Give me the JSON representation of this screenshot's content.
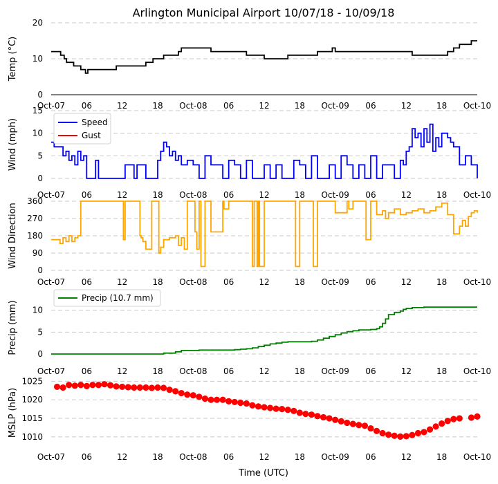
{
  "title": "Arlington Municipal Airport 10/07/18 - 10/09/18",
  "xlabel": "Time (UTC)",
  "x_tick_labels": [
    "Oct-07",
    "06",
    "12",
    "18",
    "Oct-08",
    "06",
    "12",
    "18",
    "Oct-09",
    "06",
    "12",
    "18",
    "Oct-10"
  ],
  "chart_data": [
    {
      "type": "line",
      "id": "temp",
      "ylabel": "Temp (°C)",
      "ylim": [
        0,
        20
      ],
      "yticks": [
        0,
        10,
        20
      ],
      "xlim_hours": [
        0,
        72
      ],
      "color": "#000000",
      "series": [
        {
          "name": "Temp",
          "x": [
            0,
            1.2,
            1.6,
            2.2,
            2.6,
            3.0,
            3.8,
            4.5,
            5.0,
            5.8,
            6.2,
            10.5,
            11.0,
            15.5,
            16.0,
            17.2,
            18.0,
            19.0,
            19.5,
            21.5,
            22.0,
            26.0,
            27.0,
            33.0,
            35.0,
            36.0,
            39.0,
            40.0,
            45.0,
            46.0,
            47.5,
            48.0,
            60.0,
            61.0,
            64.0,
            65.0,
            67.0,
            68.0,
            69.0,
            70.0,
            71.0,
            72.0
          ],
          "values": [
            12,
            12,
            11,
            10,
            9,
            9,
            8,
            8,
            7,
            6,
            7,
            7,
            8,
            8,
            9,
            10,
            10,
            11,
            11,
            12,
            13,
            13,
            12,
            11,
            11,
            10,
            10,
            11,
            12,
            12,
            13,
            12,
            12,
            11,
            11,
            11,
            12,
            13,
            14,
            14,
            15,
            15
          ]
        }
      ]
    },
    {
      "type": "line",
      "id": "wind",
      "ylabel": "Wind (mph)",
      "ylim": [
        0,
        15
      ],
      "yticks": [
        0,
        5,
        10,
        15
      ],
      "xlim_hours": [
        0,
        72
      ],
      "legend": [
        "Speed",
        "Gust"
      ],
      "legend_colors": [
        "#0000ff",
        "#ff0000"
      ],
      "series": [
        {
          "name": "Speed",
          "color": "#0000ff",
          "x": [
            0,
            0.5,
            1.0,
            2.0,
            2.5,
            3.0,
            3.5,
            4.0,
            4.5,
            5.0,
            5.5,
            6.0,
            7.5,
            8.0,
            12.0,
            12.5,
            14.0,
            14.5,
            16.0,
            17.0,
            18.0,
            18.5,
            19.0,
            19.5,
            20.0,
            20.5,
            21.0,
            21.5,
            22.0,
            23.0,
            24.0,
            25.0,
            26.0,
            27.0,
            28.0,
            29.0,
            30.0,
            31.0,
            32.0,
            33.0,
            34.0,
            35.0,
            36.0,
            37.0,
            38.0,
            39.0,
            40.0,
            41.0,
            42.0,
            43.0,
            44.0,
            45.0,
            46.0,
            47.0,
            48.0,
            49.0,
            50.0,
            51.0,
            52.0,
            53.0,
            54.0,
            55.0,
            56.0,
            57.0,
            58.0,
            59.0,
            59.5,
            60.0,
            60.5,
            61.0,
            61.5,
            62.0,
            62.5,
            63.0,
            63.5,
            64.0,
            64.5,
            65.0,
            65.5,
            66.0,
            67.0,
            67.5,
            68.0,
            69.0,
            70.0,
            71.0,
            72.0
          ],
          "values": [
            8,
            7,
            7,
            5,
            6,
            4,
            5,
            3,
            6,
            4,
            5,
            0,
            4,
            0,
            0,
            3,
            0,
            3,
            0,
            0,
            4,
            6,
            8,
            7,
            5,
            6,
            4,
            5,
            3,
            4,
            3,
            0,
            5,
            3,
            3,
            0,
            4,
            3,
            0,
            4,
            0,
            0,
            3,
            0,
            3,
            0,
            0,
            4,
            3,
            0,
            5,
            0,
            0,
            3,
            0,
            5,
            3,
            0,
            3,
            0,
            5,
            0,
            3,
            3,
            0,
            4,
            3,
            6,
            7,
            11,
            9,
            10,
            7,
            11,
            8,
            12,
            6,
            9,
            7,
            10,
            9,
            8,
            7,
            3,
            5,
            3,
            0
          ]
        },
        {
          "name": "Gust",
          "color": "#ff0000",
          "x": [],
          "values": []
        }
      ]
    },
    {
      "type": "line",
      "id": "dir",
      "ylabel": "Wind Direction",
      "ylim": [
        0,
        360
      ],
      "yticks": [
        0,
        90,
        180,
        270,
        360
      ],
      "xlim_hours": [
        0,
        72
      ],
      "color": "#ffa500",
      "series": [
        {
          "name": "Direction",
          "x": [
            0,
            1,
            1.5,
            2,
            2.5,
            3,
            3.5,
            4.0,
            4.5,
            5.0,
            6.5,
            7.0,
            12.0,
            12.2,
            12.5,
            14.5,
            15.0,
            15.2,
            15.5,
            16.0,
            17.0,
            18.0,
            18.2,
            18.5,
            19.0,
            20.0,
            21.0,
            21.5,
            22.0,
            22.5,
            23.0,
            24.0,
            24.3,
            24.6,
            25.0,
            25.3,
            26.0,
            26.5,
            27.0,
            29.0,
            29.2,
            30.0,
            32.0,
            33.0,
            34.0,
            34.3,
            34.8,
            35.0,
            35.2,
            36.0,
            38.0,
            41.0,
            41.3,
            42.0,
            43.0,
            44.0,
            44.3,
            45.0,
            46.0,
            48.0,
            50.0,
            50.3,
            51.0,
            52.0,
            53.0,
            53.2,
            54.0,
            54.5,
            55.0,
            56.0,
            56.5,
            57.0,
            58.0,
            59.0,
            60.0,
            61.0,
            62.0,
            63.0,
            64.0,
            65.0,
            66.0,
            67.0,
            68.0,
            69.0,
            69.5,
            70.0,
            70.5,
            71.0,
            71.5,
            72.0
          ],
          "values": [
            160,
            160,
            140,
            170,
            150,
            180,
            150,
            170,
            180,
            360,
            360,
            360,
            360,
            160,
            360,
            360,
            180,
            170,
            150,
            110,
            360,
            360,
            90,
            120,
            160,
            170,
            180,
            130,
            170,
            110,
            360,
            360,
            200,
            110,
            360,
            20,
            360,
            360,
            200,
            360,
            320,
            360,
            360,
            360,
            20,
            360,
            20,
            360,
            20,
            360,
            360,
            360,
            20,
            360,
            360,
            360,
            20,
            360,
            360,
            300,
            360,
            320,
            360,
            360,
            360,
            160,
            360,
            360,
            290,
            310,
            270,
            300,
            320,
            290,
            300,
            310,
            320,
            300,
            310,
            330,
            350,
            290,
            190,
            230,
            260,
            230,
            280,
            300,
            310,
            300
          ]
        }
      ]
    },
    {
      "type": "line",
      "id": "precip",
      "ylabel": "Precip (mm)",
      "ylim": [
        0,
        12
      ],
      "yticks": [
        0,
        5,
        10
      ],
      "xlim_hours": [
        0,
        72
      ],
      "color": "#008000",
      "legend": [
        "Precip (10.7 mm)"
      ],
      "series": [
        {
          "name": "Precip (10.7 mm)",
          "x": [
            0,
            18.0,
            19.0,
            21.0,
            22.0,
            24.0,
            25.0,
            30.0,
            31.0,
            32.0,
            33.0,
            34.0,
            35.0,
            36.0,
            37.0,
            38.0,
            39.0,
            40.0,
            44.0,
            45.0,
            46.0,
            47.0,
            48.0,
            49.0,
            50.0,
            51.0,
            52.0,
            54.0,
            55.0,
            55.5,
            56.0,
            56.5,
            57.0,
            58.0,
            59.0,
            59.5,
            60.0,
            61.0,
            63.0,
            65.0,
            72.0
          ],
          "values": [
            0,
            0,
            0.2,
            0.5,
            0.8,
            0.8,
            0.9,
            0.9,
            1.0,
            1.1,
            1.2,
            1.4,
            1.7,
            2.0,
            2.3,
            2.5,
            2.7,
            2.8,
            2.9,
            3.2,
            3.6,
            4.0,
            4.4,
            4.8,
            5.1,
            5.3,
            5.5,
            5.6,
            5.8,
            6.2,
            7.0,
            8.0,
            9.0,
            9.5,
            9.8,
            10.2,
            10.4,
            10.6,
            10.7,
            10.7,
            10.7
          ]
        }
      ]
    },
    {
      "type": "scatter",
      "id": "mslp",
      "ylabel": "MSLP (hPa)",
      "ylim": [
        1007,
        1026
      ],
      "yticks": [
        1010,
        1015,
        1020,
        1025
      ],
      "xlim_hours": [
        0,
        72
      ],
      "color": "#ff0000",
      "series": [
        {
          "name": "MSLP",
          "x": [
            1,
            2,
            3,
            4,
            5,
            6,
            7,
            8,
            9,
            10,
            11,
            12,
            13,
            14,
            15,
            16,
            17,
            18,
            19,
            20,
            21,
            22,
            23,
            24,
            25,
            26,
            27,
            28,
            29,
            30,
            31,
            32,
            33,
            34,
            35,
            36,
            37,
            38,
            39,
            40,
            41,
            42,
            43,
            44,
            45,
            46,
            47,
            48,
            49,
            50,
            51,
            52,
            53,
            54,
            55,
            56,
            57,
            58,
            59,
            60,
            61,
            62,
            63,
            64,
            65,
            66,
            67,
            68,
            69,
            71,
            72
          ],
          "values": [
            1023.5,
            1023.3,
            1024.0,
            1023.8,
            1024.0,
            1023.7,
            1024.0,
            1024.0,
            1024.2,
            1023.9,
            1023.6,
            1023.5,
            1023.4,
            1023.3,
            1023.3,
            1023.3,
            1023.2,
            1023.3,
            1023.2,
            1022.7,
            1022.3,
            1021.8,
            1021.4,
            1021.2,
            1020.8,
            1020.3,
            1020.0,
            1020.0,
            1020.0,
            1019.6,
            1019.4,
            1019.2,
            1019.0,
            1018.5,
            1018.2,
            1018.0,
            1017.8,
            1017.6,
            1017.5,
            1017.3,
            1017.0,
            1016.5,
            1016.2,
            1016.0,
            1015.6,
            1015.3,
            1015.0,
            1014.6,
            1014.2,
            1013.8,
            1013.5,
            1013.2,
            1013.0,
            1012.3,
            1011.6,
            1011.0,
            1010.6,
            1010.3,
            1010.1,
            1010.2,
            1010.5,
            1011.0,
            1011.3,
            1012.0,
            1012.8,
            1013.6,
            1014.3,
            1014.8,
            1015.0,
            1015.2,
            1015.5
          ]
        }
      ]
    }
  ]
}
